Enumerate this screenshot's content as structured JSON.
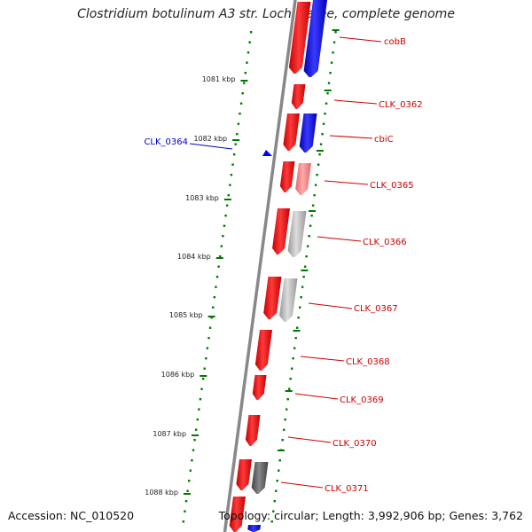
{
  "title": "Clostridium botulinum A3 str. Loch Maree, complete genome",
  "footer": {
    "accession": "Accession: NC_010520",
    "topology": "Topology: circular; Length: 3,992,906 bp; Genes: 3,762"
  },
  "colors": {
    "forward": "#ff0000",
    "forward_light": "#ff8080",
    "reverse": "#0000ff",
    "gray": "#bbbbbb",
    "dark_gray": "#555555",
    "tick": "#007700",
    "backbone": "#888888",
    "label_red": "#cc0000",
    "label_blue": "#0000cc"
  },
  "ticks": [
    "1081 kbp",
    "1082 kbp",
    "1083 kbp",
    "1084 kbp",
    "1085 kbp",
    "1086 kbp",
    "1087 kbp",
    "1088 kbp"
  ],
  "gene_labels": [
    {
      "text": "cobB",
      "color": "red"
    },
    {
      "text": "CLK_0362",
      "color": "red"
    },
    {
      "text": "cbiC",
      "color": "red"
    },
    {
      "text": "CLK_0365",
      "color": "red"
    },
    {
      "text": "CLK_0366",
      "color": "red"
    },
    {
      "text": "CLK_0367",
      "color": "red"
    },
    {
      "text": "CLK_0368",
      "color": "red"
    },
    {
      "text": "CLK_0369",
      "color": "red"
    },
    {
      "text": "CLK_0370",
      "color": "red"
    },
    {
      "text": "CLK_0371",
      "color": "red"
    },
    {
      "text": "CLK_0364",
      "color": "blue"
    }
  ]
}
